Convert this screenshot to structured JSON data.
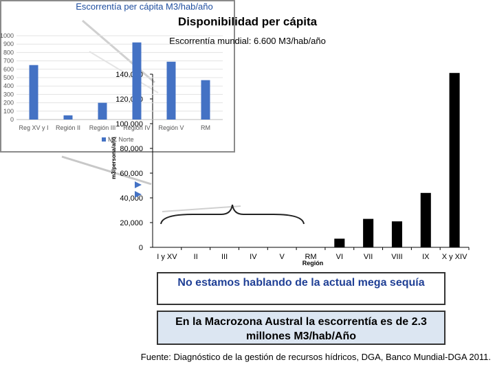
{
  "title": "Disponibilidad per cápita",
  "subtitle": "Escorrentía mundial: 6.600 M3/hab/año",
  "chart_data": [
    {
      "type": "bar",
      "ylabel": "m3/persona/año",
      "xlabel": "Región",
      "categories": [
        "I y XV",
        "II",
        "III",
        "IV",
        "V",
        "RM",
        "VI",
        "VII",
        "VIII",
        "IX",
        "X y XIV"
      ],
      "values": [
        null,
        null,
        null,
        null,
        null,
        null,
        7000,
        23000,
        21000,
        44000,
        141000
      ],
      "yticks": [
        "0",
        "20,000",
        "40,000",
        "60,000",
        "80,000",
        "100,000",
        "120,000",
        "140,000"
      ],
      "ylim": [
        0,
        140000
      ],
      "bar_color": "#000000"
    },
    {
      "type": "bar",
      "title": "Escorrentía per cápita M3/hab/año",
      "categories": [
        "Reg XV y I",
        "Región II",
        "Región III",
        "Región IV",
        "Región V",
        "RM"
      ],
      "values": [
        650,
        50,
        200,
        920,
        690,
        470
      ],
      "yticks": [
        "0",
        "100",
        "200",
        "300",
        "400",
        "500",
        "600",
        "700",
        "800",
        "900",
        "1000"
      ],
      "ylim": [
        0,
        1000
      ],
      "legend": "MZ Norte",
      "bar_color": "#4472c4"
    }
  ],
  "note1": "No estamos hablando de la actual mega sequía",
  "note2": "En la Macrozona Austral la escorrentía es  de 2.3 millones M3/hab/Año",
  "source": "Fuente: Diagnóstico de la gestión de recursos hídricos, DGA, Banco Mundial-DGA 2011."
}
